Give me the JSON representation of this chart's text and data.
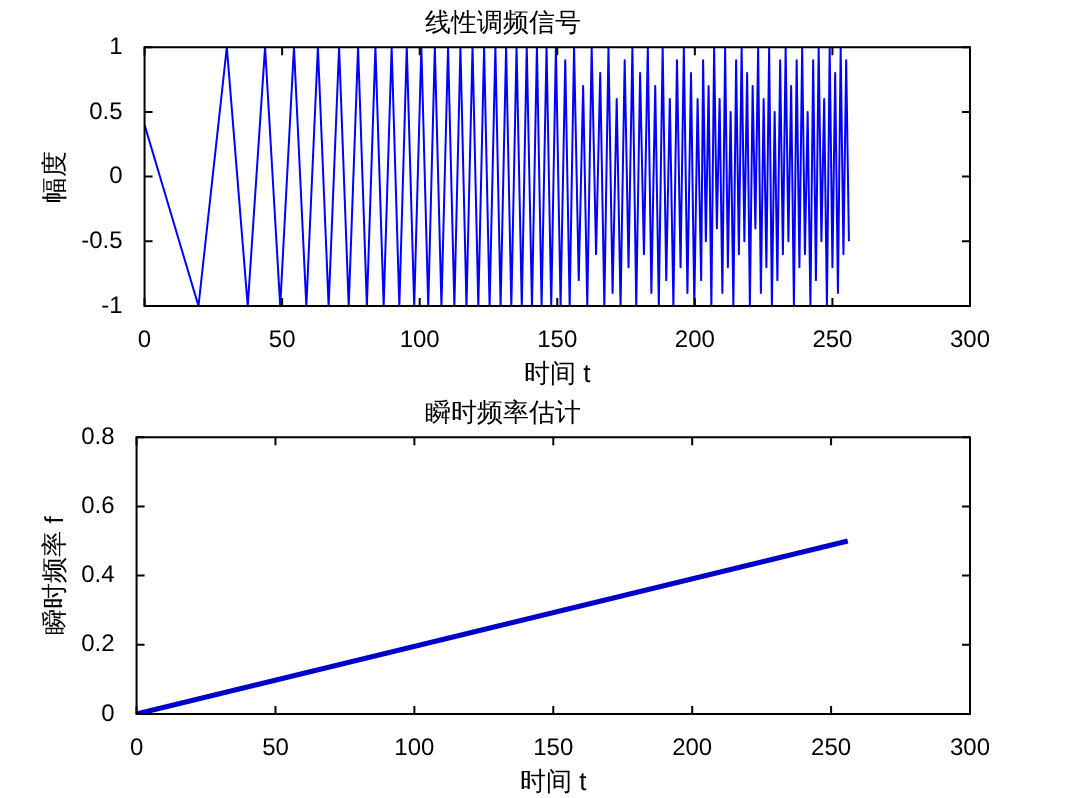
{
  "chart_data": [
    {
      "type": "line",
      "title": "线性调频信号",
      "xlabel": "时间 t",
      "ylabel": "幅度",
      "color": "#0000ff",
      "x": [
        0,
        19.6,
        29.9,
        37.5,
        43.8,
        49.3,
        54.3,
        58.8,
        63.0,
        66.9,
        70.7,
        74.2,
        77.6,
        80.8,
        83.9,
        86.9,
        89.8,
        92.6,
        95.3,
        98.0,
        100.6,
        103.1,
        105.5,
        107.9,
        110.3,
        112.6,
        114.8,
        117.0,
        119.2,
        121.3,
        123.4,
        125.4,
        127.5,
        129.4,
        131.4,
        133.3,
        135.2,
        137.1,
        138.9,
        140.8,
        142.6,
        144.3,
        146.1,
        147.8,
        149.5,
        151.2,
        152.9,
        154.5,
        156.1,
        157.8,
        159.4,
        160.9,
        162.5,
        164.1,
        165.6,
        167.1,
        168.6,
        170.1,
        171.6,
        173.0,
        174.5,
        175.9,
        177.3,
        178.7,
        180.1,
        181.5,
        182.9,
        184.2,
        185.6,
        186.9,
        188.3,
        189.6,
        190.9,
        192.2,
        193.5,
        194.8,
        196.0,
        197.3,
        198.6,
        199.8,
        201.0,
        202.3,
        203,
        204,
        205,
        206,
        207,
        208,
        209,
        210,
        211,
        212,
        213,
        214,
        215,
        216,
        217,
        218,
        219,
        220,
        221,
        222,
        223,
        224,
        225,
        226,
        227,
        228,
        229,
        230,
        231,
        232,
        233,
        234,
        235,
        236,
        237,
        238,
        239,
        240,
        241,
        242,
        243,
        244,
        245,
        246,
        247,
        248,
        249,
        250,
        251,
        252,
        253,
        254,
        255,
        256
      ],
      "values": [
        0.4,
        -1,
        1,
        -1,
        1,
        -1,
        1,
        -1,
        1,
        -1,
        1,
        -1,
        1,
        -1,
        1,
        -1,
        1,
        -1,
        1,
        -1,
        1,
        -1,
        1,
        -1,
        1,
        -1,
        1,
        -1,
        1,
        -1,
        1,
        -1,
        1,
        -1,
        1,
        -1,
        1,
        -1,
        1,
        -1,
        1,
        -1,
        1,
        -1,
        1,
        -1,
        0.9,
        -1,
        1,
        -0.8,
        0.7,
        -1,
        1,
        -0.6,
        0.8,
        -1,
        1,
        -0.9,
        0.6,
        -1,
        0.9,
        -0.7,
        1,
        -1,
        0.8,
        -0.6,
        1,
        -0.9,
        0.7,
        -1,
        1,
        -0.8,
        0.6,
        -1,
        0.9,
        -0.7,
        1,
        -0.9,
        0.8,
        -1,
        0.6,
        -0.8,
        0.9,
        -0.5,
        0.7,
        -1,
        1,
        -0.4,
        0.6,
        -0.9,
        1,
        -0.7,
        0.5,
        -1,
        0.9,
        -0.6,
        1,
        -0.5,
        0.8,
        -1,
        0.7,
        -0.4,
        1,
        -0.9,
        0.6,
        -0.7,
        1,
        -1,
        0.5,
        -0.8,
        0.9,
        -0.6,
        1,
        -0.5,
        0.7,
        -1,
        0.9,
        -0.7,
        1,
        -0.6,
        0.5,
        -1,
        0.9,
        -0.8,
        1,
        -0.5,
        0.6,
        -1,
        1,
        -0.7,
        0.8,
        -0.9,
        1,
        -0.6,
        0.9,
        -0.5
      ],
      "xlim": [
        0,
        300
      ],
      "xticks": [
        0,
        50,
        100,
        150,
        200,
        250,
        300
      ],
      "ylim": [
        -1,
        1
      ],
      "yticks": [
        -1,
        -0.5,
        0,
        0.5,
        1
      ]
    },
    {
      "type": "line",
      "title": "瞬时频率估计",
      "xlabel": "时间 t",
      "ylabel": "瞬时频率 f",
      "color": "#0000cc",
      "x": [
        0,
        256
      ],
      "values": [
        0,
        0.5
      ],
      "xlim": [
        0,
        300
      ],
      "xticks": [
        0,
        50,
        100,
        150,
        200,
        250,
        300
      ],
      "ylim": [
        0,
        0.8
      ],
      "yticks": [
        0,
        0.2,
        0.4,
        0.6,
        0.8
      ]
    }
  ]
}
